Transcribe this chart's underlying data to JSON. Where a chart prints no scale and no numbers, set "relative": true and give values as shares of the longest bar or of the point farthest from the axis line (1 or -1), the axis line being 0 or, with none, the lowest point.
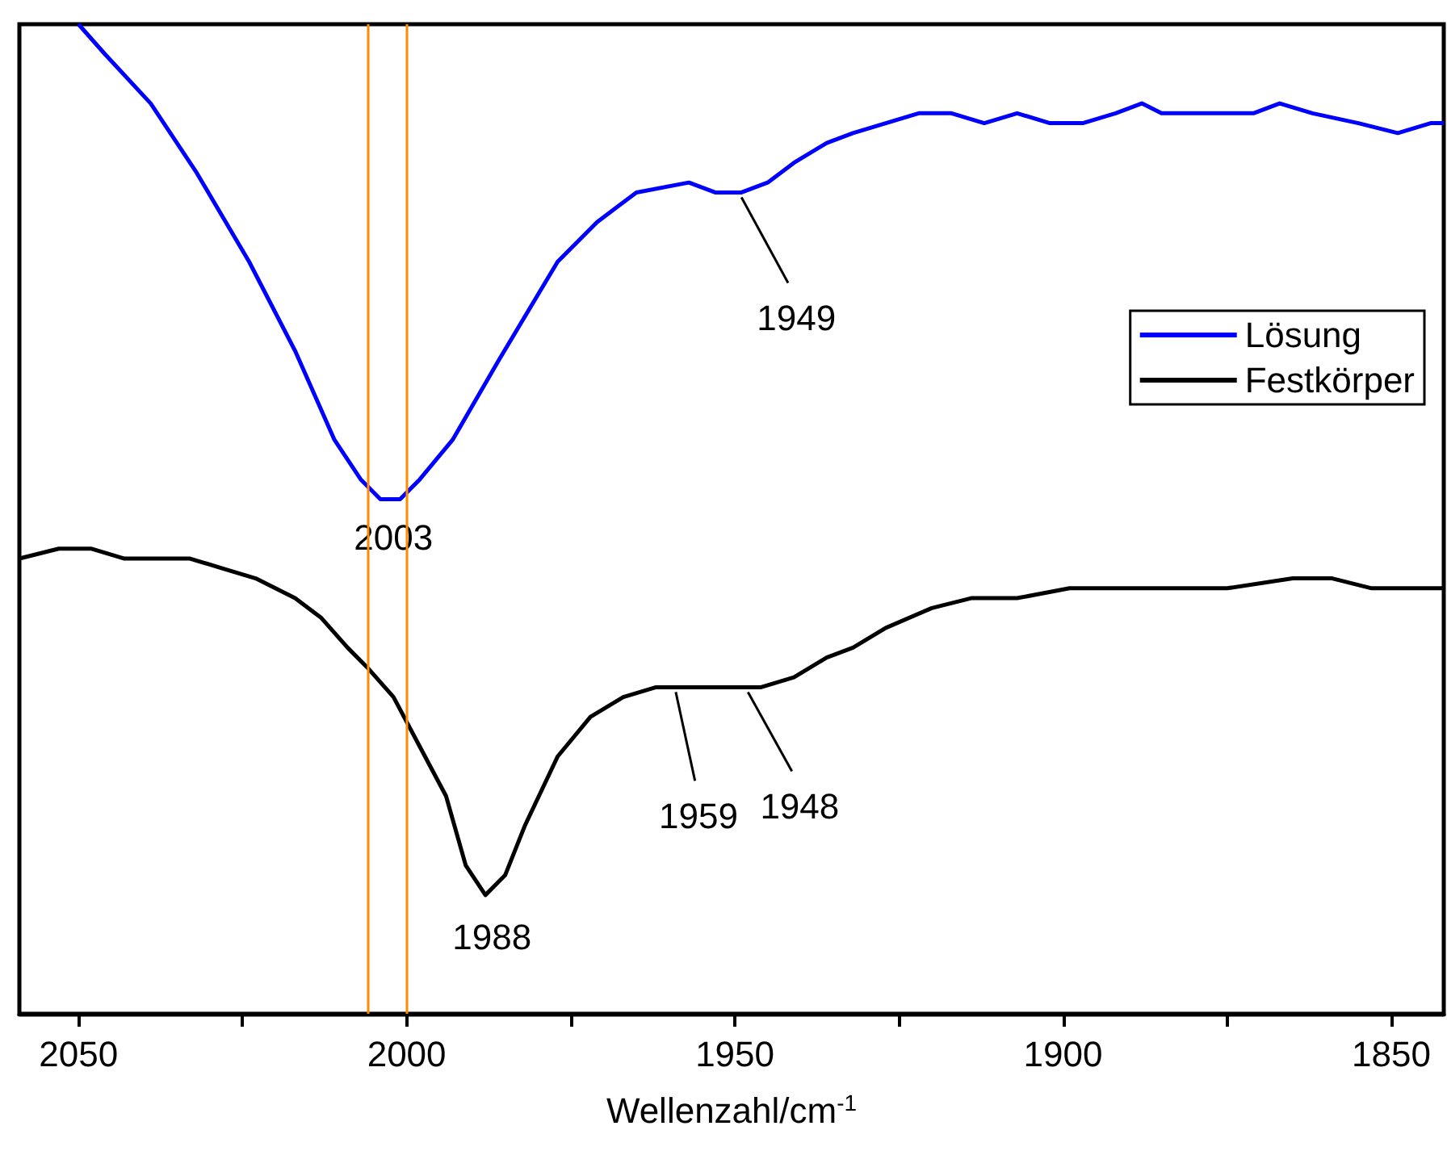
{
  "chart_data": {
    "type": "line",
    "relative": true,
    "xlabel": "Wellenzahl/cm$^{-1}$",
    "xlim": [
      2059,
      1842
    ],
    "xticks": [
      2050,
      {
        "value": 2025,
        "label": null
      },
      2000,
      {
        "value": 1975,
        "label": null
      },
      1950,
      {
        "value": 1925,
        "label": null
      },
      1900,
      {
        "value": 1875,
        "label": null
      },
      1850
    ],
    "legend": "right",
    "grid": false,
    "marker": "none",
    "line_style": "solid",
    "tick_labels": "x",
    "series": [
      {
        "name": "Lösung",
        "color": "#0000ff",
        "x": [
          2050,
          2046,
          2039,
          2032,
          2024,
          2017,
          2011,
          2007,
          2004,
          2001,
          1998,
          1993,
          1986,
          1977,
          1971,
          1965,
          1957,
          1953,
          1949,
          1945,
          1941,
          1936,
          1932,
          1927,
          1922,
          1917,
          1912,
          1907,
          1902,
          1897,
          1892,
          1888,
          1885,
          1877,
          1871,
          1867,
          1862,
          1855,
          1849,
          1844,
          1842
        ],
        "values": [
          1.0,
          0.97,
          0.92,
          0.85,
          0.76,
          0.67,
          0.58,
          0.54,
          0.52,
          0.52,
          0.54,
          0.58,
          0.66,
          0.76,
          0.8,
          0.83,
          0.84,
          0.83,
          0.83,
          0.84,
          0.86,
          0.88,
          0.89,
          0.9,
          0.91,
          0.91,
          0.9,
          0.91,
          0.9,
          0.9,
          0.91,
          0.92,
          0.91,
          0.91,
          0.91,
          0.92,
          0.91,
          0.9,
          0.89,
          0.9,
          0.9
        ]
      },
      {
        "name": "Festkörper",
        "color": "#000000",
        "x": [
          2059,
          2053,
          2048,
          2043,
          2038,
          2033,
          2028,
          2023,
          2017,
          2013,
          2009,
          2006,
          2002,
          1998,
          1994,
          1991,
          1988,
          1985,
          1982,
          1977,
          1972,
          1967,
          1962,
          1956,
          1951,
          1946,
          1941,
          1936,
          1932,
          1927,
          1920,
          1914,
          1907,
          1899,
          1892,
          1885,
          1875,
          1865,
          1859,
          1853,
          1845,
          1842
        ],
        "values": [
          0.46,
          0.47,
          0.47,
          0.46,
          0.46,
          0.46,
          0.45,
          0.44,
          0.42,
          0.4,
          0.37,
          0.35,
          0.32,
          0.27,
          0.22,
          0.15,
          0.12,
          0.14,
          0.19,
          0.26,
          0.3,
          0.32,
          0.33,
          0.33,
          0.33,
          0.33,
          0.34,
          0.36,
          0.37,
          0.39,
          0.41,
          0.42,
          0.42,
          0.43,
          0.43,
          0.43,
          0.43,
          0.44,
          0.44,
          0.43,
          0.43,
          0.43
        ]
      }
    ],
    "ref_lines": [
      {
        "axis": "x",
        "value": 2006,
        "color": "#ff8c00",
        "line_style": "solid"
      },
      {
        "axis": "x",
        "value": 2000,
        "color": "#ff8c00",
        "line_style": "solid"
      }
    ],
    "annotations": [
      {
        "text": "2003",
        "x": 2003,
        "y": 0.52
      },
      {
        "text": "1949",
        "x": 1949,
        "y": 0.83
      },
      {
        "text": "1988",
        "x": 1988,
        "y": 0.12
      },
      {
        "text": "1959",
        "x": 1959,
        "y": 0.33
      },
      {
        "text": "1948",
        "x": 1948,
        "y": 0.33
      }
    ]
  }
}
